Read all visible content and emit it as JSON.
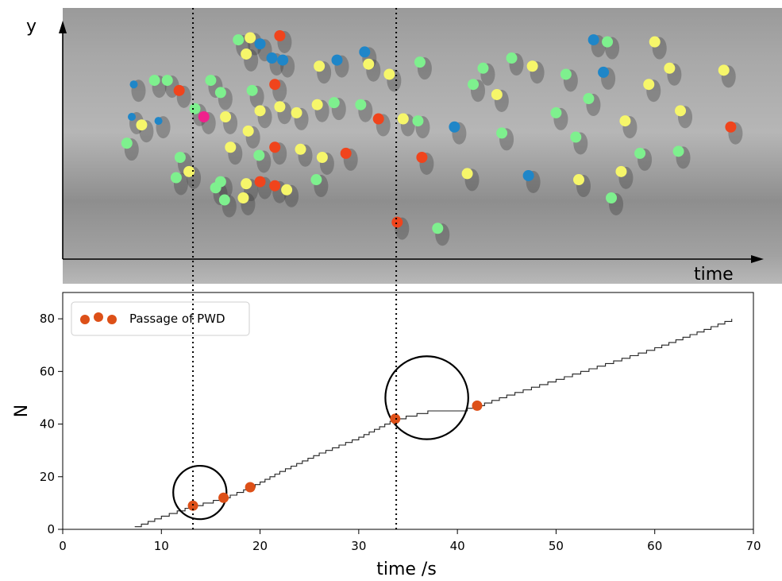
{
  "top_panel": {
    "y_label": "y",
    "x_label": "time",
    "dot_colors": {
      "red": "#f0441c",
      "blue": "#1f86c8",
      "green": "#7ef08e",
      "yellow": "#f6f66a",
      "pink": "#f0208c"
    },
    "dots": [
      {
        "t": 7.0,
        "y": 0.6,
        "c": "blue"
      },
      {
        "t": 6.5,
        "y": 0.47,
        "c": "green"
      },
      {
        "t": 8.0,
        "y": 0.56,
        "c": "yellow"
      },
      {
        "t": 7.2,
        "y": 0.76,
        "c": "blue"
      },
      {
        "t": 9.3,
        "y": 0.78,
        "c": "green"
      },
      {
        "t": 10.6,
        "y": 0.78,
        "c": "green"
      },
      {
        "t": 11.8,
        "y": 0.73,
        "c": "red"
      },
      {
        "t": 9.7,
        "y": 0.58,
        "c": "blue"
      },
      {
        "t": 11.9,
        "y": 0.4,
        "c": "green"
      },
      {
        "t": 12.8,
        "y": 0.33,
        "c": "yellow"
      },
      {
        "t": 11.5,
        "y": 0.3,
        "c": "green"
      },
      {
        "t": 14.3,
        "y": 0.6,
        "c": "pink"
      },
      {
        "t": 13.4,
        "y": 0.64,
        "c": "green"
      },
      {
        "t": 16.0,
        "y": 0.72,
        "c": "green"
      },
      {
        "t": 15.0,
        "y": 0.78,
        "c": "green"
      },
      {
        "t": 16.5,
        "y": 0.6,
        "c": "yellow"
      },
      {
        "t": 16.0,
        "y": 0.28,
        "c": "green"
      },
      {
        "t": 16.4,
        "y": 0.19,
        "c": "green"
      },
      {
        "t": 18.6,
        "y": 0.27,
        "c": "yellow"
      },
      {
        "t": 18.3,
        "y": 0.2,
        "c": "yellow"
      },
      {
        "t": 15.5,
        "y": 0.25,
        "c": "green"
      },
      {
        "t": 17.0,
        "y": 0.45,
        "c": "yellow"
      },
      {
        "t": 18.8,
        "y": 0.53,
        "c": "yellow"
      },
      {
        "t": 19.9,
        "y": 0.41,
        "c": "green"
      },
      {
        "t": 21.5,
        "y": 0.45,
        "c": "red"
      },
      {
        "t": 20.0,
        "y": 0.63,
        "c": "yellow"
      },
      {
        "t": 19.2,
        "y": 0.73,
        "c": "green"
      },
      {
        "t": 21.5,
        "y": 0.76,
        "c": "red"
      },
      {
        "t": 22.0,
        "y": 0.65,
        "c": "yellow"
      },
      {
        "t": 22.7,
        "y": 0.24,
        "c": "yellow"
      },
      {
        "t": 21.5,
        "y": 0.26,
        "c": "red"
      },
      {
        "t": 20.0,
        "y": 0.28,
        "c": "red"
      },
      {
        "t": 17.8,
        "y": 0.98,
        "c": "green"
      },
      {
        "t": 19.0,
        "y": 0.99,
        "c": "yellow"
      },
      {
        "t": 20.0,
        "y": 0.96,
        "c": "blue"
      },
      {
        "t": 18.6,
        "y": 0.91,
        "c": "yellow"
      },
      {
        "t": 21.2,
        "y": 0.89,
        "c": "blue"
      },
      {
        "t": 22.0,
        "y": 1.0,
        "c": "red"
      },
      {
        "t": 22.3,
        "y": 0.88,
        "c": "blue"
      },
      {
        "t": 23.7,
        "y": 0.62,
        "c": "yellow"
      },
      {
        "t": 24.1,
        "y": 0.44,
        "c": "yellow"
      },
      {
        "t": 25.8,
        "y": 0.66,
        "c": "yellow"
      },
      {
        "t": 26.0,
        "y": 0.85,
        "c": "yellow"
      },
      {
        "t": 26.3,
        "y": 0.4,
        "c": "yellow"
      },
      {
        "t": 25.7,
        "y": 0.29,
        "c": "green"
      },
      {
        "t": 27.8,
        "y": 0.88,
        "c": "blue"
      },
      {
        "t": 27.5,
        "y": 0.67,
        "c": "green"
      },
      {
        "t": 28.7,
        "y": 0.42,
        "c": "red"
      },
      {
        "t": 30.2,
        "y": 0.66,
        "c": "green"
      },
      {
        "t": 30.6,
        "y": 0.92,
        "c": "blue"
      },
      {
        "t": 31.0,
        "y": 0.86,
        "c": "yellow"
      },
      {
        "t": 32.0,
        "y": 0.59,
        "c": "red"
      },
      {
        "t": 33.1,
        "y": 0.81,
        "c": "yellow"
      },
      {
        "t": 33.9,
        "y": 0.08,
        "c": "red"
      },
      {
        "t": 34.5,
        "y": 0.59,
        "c": "yellow"
      },
      {
        "t": 36.0,
        "y": 0.58,
        "c": "green"
      },
      {
        "t": 36.4,
        "y": 0.4,
        "c": "red"
      },
      {
        "t": 36.2,
        "y": 0.87,
        "c": "green"
      },
      {
        "t": 38.0,
        "y": 0.05,
        "c": "green"
      },
      {
        "t": 39.7,
        "y": 0.55,
        "c": "blue"
      },
      {
        "t": 41.0,
        "y": 0.32,
        "c": "yellow"
      },
      {
        "t": 41.6,
        "y": 0.76,
        "c": "green"
      },
      {
        "t": 42.6,
        "y": 0.84,
        "c": "green"
      },
      {
        "t": 44.0,
        "y": 0.71,
        "c": "yellow"
      },
      {
        "t": 44.5,
        "y": 0.52,
        "c": "green"
      },
      {
        "t": 45.5,
        "y": 0.89,
        "c": "green"
      },
      {
        "t": 47.2,
        "y": 0.31,
        "c": "blue"
      },
      {
        "t": 47.6,
        "y": 0.85,
        "c": "yellow"
      },
      {
        "t": 50.0,
        "y": 0.62,
        "c": "green"
      },
      {
        "t": 51.0,
        "y": 0.81,
        "c": "green"
      },
      {
        "t": 52.0,
        "y": 0.5,
        "c": "green"
      },
      {
        "t": 52.3,
        "y": 0.29,
        "c": "yellow"
      },
      {
        "t": 53.3,
        "y": 0.69,
        "c": "green"
      },
      {
        "t": 53.8,
        "y": 0.98,
        "c": "blue"
      },
      {
        "t": 54.8,
        "y": 0.82,
        "c": "blue"
      },
      {
        "t": 55.2,
        "y": 0.97,
        "c": "green"
      },
      {
        "t": 55.6,
        "y": 0.2,
        "c": "green"
      },
      {
        "t": 56.6,
        "y": 0.33,
        "c": "yellow"
      },
      {
        "t": 57.0,
        "y": 0.58,
        "c": "yellow"
      },
      {
        "t": 58.5,
        "y": 0.42,
        "c": "green"
      },
      {
        "t": 59.4,
        "y": 0.76,
        "c": "yellow"
      },
      {
        "t": 60.0,
        "y": 0.97,
        "c": "yellow"
      },
      {
        "t": 61.5,
        "y": 0.84,
        "c": "yellow"
      },
      {
        "t": 62.4,
        "y": 0.43,
        "c": "green"
      },
      {
        "t": 62.6,
        "y": 0.63,
        "c": "yellow"
      },
      {
        "t": 67.0,
        "y": 0.83,
        "c": "yellow"
      },
      {
        "t": 67.7,
        "y": 0.55,
        "c": "red"
      }
    ]
  },
  "chart_data": {
    "type": "line",
    "title": "",
    "xlabel": "time /s",
    "ylabel": "N",
    "xlim": [
      0,
      70
    ],
    "ylim": [
      0,
      90
    ],
    "xticks": [
      0,
      10,
      20,
      30,
      40,
      50,
      60,
      70
    ],
    "yticks": [
      0,
      20,
      40,
      60,
      80
    ],
    "grid": false,
    "legend_position": "top-left",
    "series": [
      {
        "type": "step",
        "start_t": 7.3,
        "end_t": 67.8,
        "points": [
          [
            7.3,
            1
          ],
          [
            10.0,
            5
          ],
          [
            13.2,
            9
          ],
          [
            16.3,
            12
          ],
          [
            19.0,
            16
          ],
          [
            22.0,
            22
          ],
          [
            26.0,
            29
          ],
          [
            30.0,
            35
          ],
          [
            33.7,
            42
          ],
          [
            37.0,
            45
          ],
          [
            40.0,
            45
          ],
          [
            42.0,
            47
          ],
          [
            45.0,
            51
          ],
          [
            50.0,
            57
          ],
          [
            55.0,
            63
          ],
          [
            60.0,
            69
          ],
          [
            65.0,
            76
          ],
          [
            67.8,
            80
          ]
        ]
      },
      {
        "name": "Passage of PWD",
        "type": "scatter",
        "color": "#dd5018",
        "points": [
          [
            13.2,
            9
          ],
          [
            16.3,
            12
          ],
          [
            19.0,
            16
          ],
          [
            33.7,
            42
          ],
          [
            42.0,
            47
          ]
        ]
      }
    ],
    "circles": [
      {
        "cx": 13.9,
        "cy": 14,
        "r_data_x": 2.7
      },
      {
        "cx": 36.9,
        "cy": 50,
        "r_data_x": 4.2
      }
    ],
    "vlines": [
      13.2,
      33.8
    ],
    "legend": [
      "Passage of PWD"
    ]
  }
}
